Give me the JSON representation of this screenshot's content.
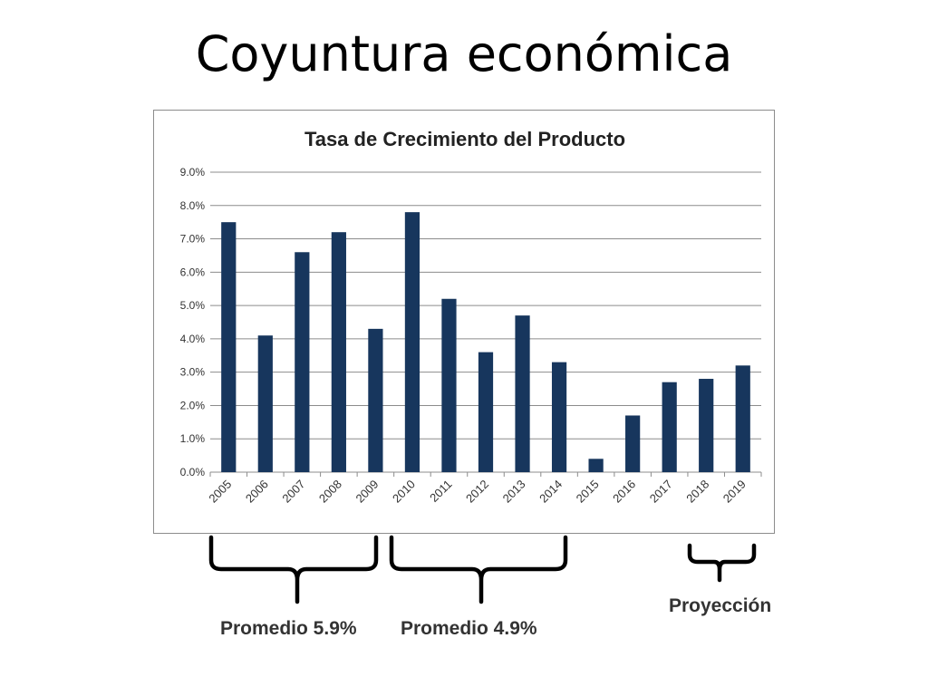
{
  "slide": {
    "title": "Coyuntura económica"
  },
  "chart_data": {
    "type": "bar",
    "title": "Tasa de Crecimiento del Producto",
    "xlabel": "",
    "ylabel": "",
    "ylim": [
      0,
      9
    ],
    "y_ticks": [
      "0.0%",
      "1.0%",
      "2.0%",
      "3.0%",
      "4.0%",
      "5.0%",
      "6.0%",
      "7.0%",
      "8.0%",
      "9.0%"
    ],
    "grid": true,
    "categories": [
      "2005",
      "2006",
      "2007",
      "2008",
      "2009",
      "2010",
      "2011",
      "2012",
      "2013",
      "2014",
      "2015",
      "2016",
      "2017",
      "2018",
      "2019"
    ],
    "values": [
      7.5,
      4.1,
      6.6,
      7.2,
      4.3,
      7.8,
      5.2,
      3.6,
      4.7,
      3.3,
      0.4,
      1.7,
      2.7,
      2.8,
      3.2
    ],
    "bar_color": "#17365d"
  },
  "annotations": {
    "promedio_1": "Promedio 5.9%",
    "promedio_2": "Promedio 4.9%",
    "proyeccion": "Proyección"
  }
}
